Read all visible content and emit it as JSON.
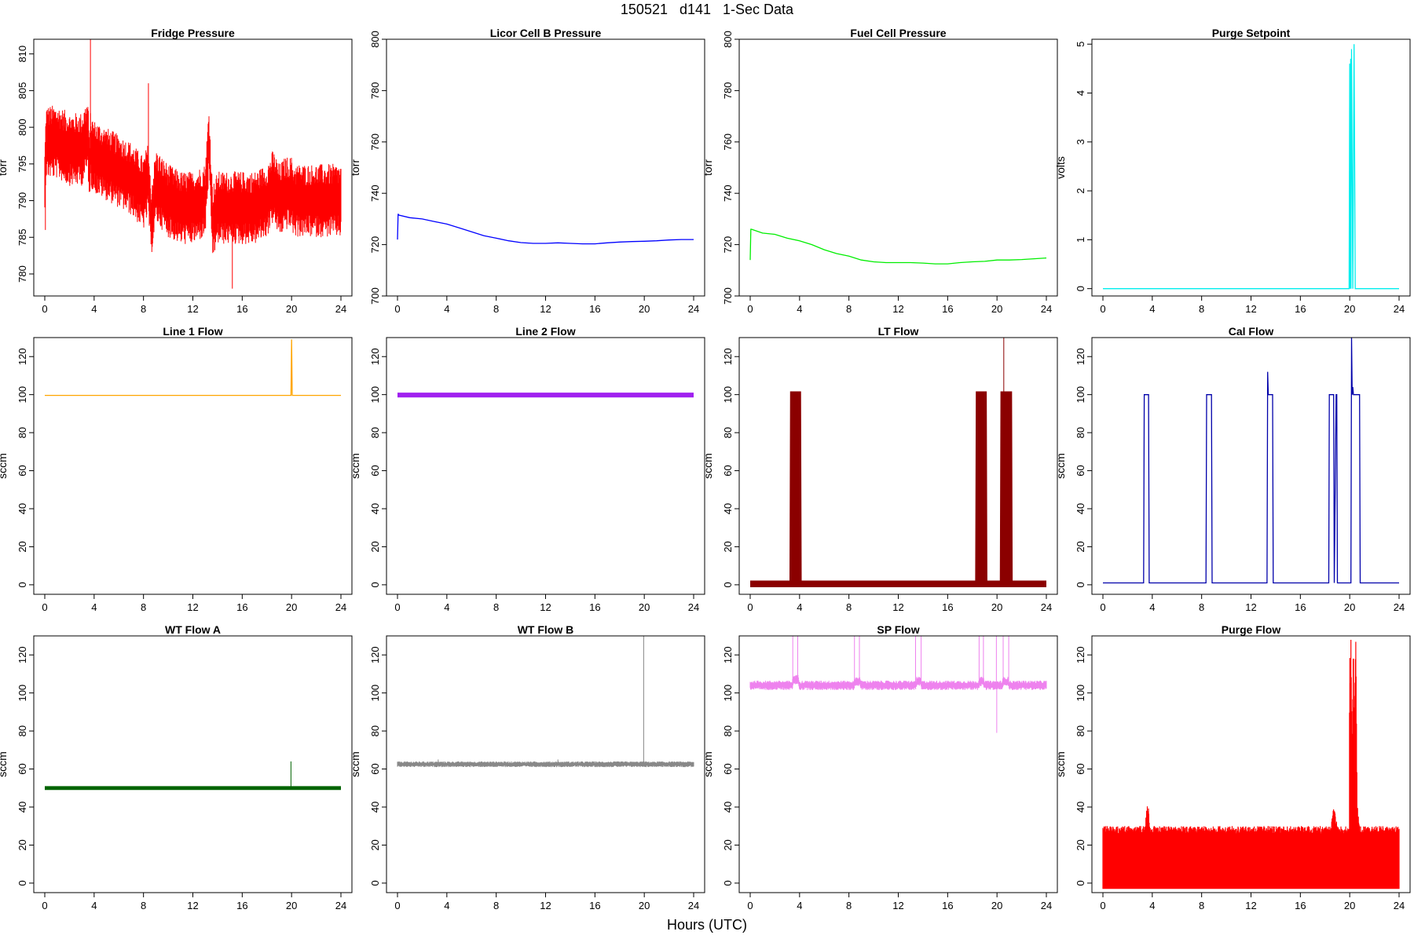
{
  "figure": {
    "title": "150521   d141   1-Sec Data",
    "xlabel": "Hours (UTC)"
  },
  "chart_data": [
    {
      "type": "line",
      "title": "Fridge Pressure",
      "ylabel": "torr",
      "color": "#ff0000",
      "render": "noisy",
      "xlim": [
        0,
        24
      ],
      "ylim": [
        777,
        812
      ],
      "xticks": [
        0,
        4,
        8,
        12,
        16,
        20,
        24
      ],
      "yticks": [
        780,
        785,
        790,
        795,
        800,
        805,
        810
      ],
      "x": [
        0,
        0.1,
        1,
        2,
        3,
        3.5,
        3.6,
        3.7,
        4,
        5,
        6,
        7,
        8,
        8.4,
        8.6,
        9,
        10,
        11,
        12,
        13,
        13.3,
        13.6,
        14,
        15,
        16,
        17,
        18,
        18.5,
        19,
        19.5,
        20,
        20.2,
        21,
        22,
        23,
        24
      ],
      "y": [
        792,
        798,
        798,
        797,
        797,
        799,
        794,
        797,
        796,
        795,
        794,
        793,
        791,
        793,
        787,
        792,
        790,
        789,
        789,
        790,
        798,
        787,
        789,
        789,
        789,
        789,
        790,
        792,
        790,
        791,
        791,
        790,
        790,
        790,
        790,
        790
      ],
      "noise": 5,
      "spikes": [
        {
          "x": 3.7,
          "y": 812
        },
        {
          "x": 8.4,
          "y": 806
        },
        {
          "x": 15.2,
          "y": 778
        },
        {
          "x": 0.05,
          "y": 786
        }
      ]
    },
    {
      "type": "line",
      "title": "Licor Cell B Pressure",
      "ylabel": "torr",
      "color": "#0000ff",
      "render": "line",
      "xlim": [
        0,
        24
      ],
      "ylim": [
        700,
        800
      ],
      "xticks": [
        0,
        4,
        8,
        12,
        16,
        20,
        24
      ],
      "yticks": [
        700,
        720,
        740,
        760,
        780,
        800
      ],
      "x": [
        0,
        0.05,
        0.1,
        1,
        2,
        3,
        4,
        5,
        6,
        7,
        8,
        9,
        10,
        11,
        12,
        13,
        14,
        15,
        16,
        17,
        18,
        19,
        20,
        21,
        22,
        23,
        24
      ],
      "y": [
        722,
        732,
        731.5,
        730.5,
        730,
        729,
        728,
        726.5,
        725,
        723.5,
        722.5,
        721.5,
        720.8,
        720.5,
        720.5,
        720.7,
        720.5,
        720.3,
        720.3,
        720.7,
        721,
        721.2,
        721.3,
        721.5,
        721.8,
        722,
        722
      ]
    },
    {
      "type": "line",
      "title": "Fuel Cell Pressure",
      "ylabel": "torr",
      "color": "#00ee00",
      "render": "line",
      "xlim": [
        0,
        24
      ],
      "ylim": [
        700,
        800
      ],
      "xticks": [
        0,
        4,
        8,
        12,
        16,
        20,
        24
      ],
      "yticks": [
        700,
        720,
        740,
        760,
        780,
        800
      ],
      "x": [
        0,
        0.05,
        0.1,
        1,
        2,
        3,
        4,
        5,
        6,
        7,
        8,
        9,
        10,
        11,
        12,
        13,
        14,
        15,
        16,
        17,
        18,
        19,
        20,
        21,
        22,
        23,
        24
      ],
      "y": [
        714,
        726,
        726,
        724.5,
        724,
        722.5,
        721.5,
        720,
        718,
        716.5,
        715.5,
        714,
        713.3,
        713,
        713,
        713,
        712.8,
        712.5,
        712.5,
        713,
        713.3,
        713.5,
        714,
        714,
        714.2,
        714.5,
        714.8
      ]
    },
    {
      "type": "line",
      "title": "Purge Setpoint",
      "ylabel": "volts",
      "color": "#00eeee",
      "render": "line",
      "xlim": [
        0,
        24
      ],
      "ylim": [
        -0.15,
        5.1
      ],
      "xticks": [
        0,
        4,
        8,
        12,
        16,
        20,
        24
      ],
      "yticks": [
        0,
        1,
        2,
        3,
        4,
        5
      ],
      "x": [
        0,
        19.95,
        20.0,
        20.02,
        20.08,
        20.1,
        20.15,
        20.2,
        20.25,
        20.3,
        20.35,
        20.4,
        20.45,
        20.5,
        20.55,
        24
      ],
      "y": [
        0,
        0,
        4.6,
        0,
        4.7,
        0,
        4.9,
        2.5,
        0,
        2.3,
        5.0,
        2.5,
        0,
        0,
        0,
        0
      ]
    },
    {
      "type": "line",
      "title": "Line 1 Flow",
      "ylabel": "sccm",
      "color": "#ffa500",
      "render": "line",
      "xlim": [
        0,
        24
      ],
      "ylim": [
        -5,
        130
      ],
      "xticks": [
        0,
        4,
        8,
        12,
        16,
        20,
        24
      ],
      "yticks": [
        0,
        20,
        40,
        60,
        80,
        100,
        120
      ],
      "x": [
        0,
        19.95,
        20.0,
        20.05,
        24
      ],
      "y": [
        99.6,
        99.6,
        129,
        99.6,
        99.6
      ]
    },
    {
      "type": "line",
      "title": "Line 2 Flow",
      "ylabel": "sccm",
      "color": "#a020f0",
      "render": "band",
      "xlim": [
        0,
        24
      ],
      "ylim": [
        -5,
        130
      ],
      "xticks": [
        0,
        4,
        8,
        12,
        16,
        20,
        24
      ],
      "yticks": [
        0,
        20,
        40,
        60,
        80,
        100,
        120
      ],
      "x": [
        0,
        24
      ],
      "y": [
        99.8,
        99.8
      ],
      "band": 2.5
    },
    {
      "type": "line",
      "title": "LT Flow",
      "ylabel": "sccm",
      "color": "#8b0000",
      "render": "band",
      "xlim": [
        0,
        24
      ],
      "ylim": [
        -5,
        130
      ],
      "xticks": [
        0,
        4,
        8,
        12,
        16,
        20,
        24
      ],
      "yticks": [
        0,
        20,
        40,
        60,
        80,
        100,
        120
      ],
      "x": [
        0,
        3.45,
        3.5,
        3.85,
        3.9,
        18.5,
        18.55,
        18.9,
        18.95,
        20.5,
        20.55,
        20.95,
        21.0,
        24
      ],
      "y": [
        0.5,
        0.5,
        100,
        100,
        0.5,
        0.5,
        100,
        100,
        0.5,
        0.5,
        100,
        100,
        0.5,
        0.5
      ],
      "band": 3.5,
      "spikes": [
        {
          "x": 20.55,
          "y": 130
        }
      ]
    },
    {
      "type": "line",
      "title": "Cal Flow",
      "ylabel": "sccm",
      "color": "#0000aa",
      "render": "line",
      "xlim": [
        0,
        24
      ],
      "ylim": [
        -5,
        130
      ],
      "xticks": [
        0,
        4,
        8,
        12,
        16,
        20,
        24
      ],
      "yticks": [
        0,
        20,
        40,
        60,
        80,
        100,
        120
      ],
      "x": [
        0,
        3.3,
        3.35,
        3.7,
        3.75,
        8.35,
        8.4,
        8.8,
        8.85,
        13.3,
        13.35,
        13.4,
        13.75,
        13.8,
        18.3,
        18.35,
        18.7,
        18.75,
        18.9,
        18.95,
        19.0,
        19.05,
        20.1,
        20.15,
        20.2,
        20.25,
        20.3,
        20.8,
        20.85,
        24
      ],
      "y": [
        1,
        1,
        100,
        100,
        1,
        1,
        100,
        100,
        1,
        1,
        112,
        100,
        100,
        1,
        1,
        100,
        100,
        1,
        100,
        100,
        1,
        1,
        1,
        130,
        100,
        104,
        100,
        100,
        1,
        1
      ]
    },
    {
      "type": "line",
      "title": "WT Flow A",
      "ylabel": "sccm",
      "color": "#006400",
      "render": "band",
      "xlim": [
        0,
        24
      ],
      "ylim": [
        -5,
        130
      ],
      "xticks": [
        0,
        4,
        8,
        12,
        16,
        20,
        24
      ],
      "yticks": [
        0,
        20,
        40,
        60,
        80,
        100,
        120
      ],
      "x": [
        0,
        24
      ],
      "y": [
        50,
        50
      ],
      "band": 2,
      "spikes": [
        {
          "x": 19.95,
          "y": 64
        }
      ]
    },
    {
      "type": "line",
      "title": "WT Flow B",
      "ylabel": "sccm",
      "color": "#888888",
      "render": "noisy",
      "xlim": [
        0,
        24
      ],
      "ylim": [
        -5,
        130
      ],
      "xticks": [
        0,
        4,
        8,
        12,
        16,
        20,
        24
      ],
      "yticks": [
        0,
        20,
        40,
        60,
        80,
        100,
        120
      ],
      "x": [
        0,
        24
      ],
      "y": [
        62.5,
        62.5
      ],
      "noise": 1.5,
      "spikes": [
        {
          "x": 19.95,
          "y": 130
        },
        {
          "x": 20.05,
          "y": 64
        },
        {
          "x": 3.3,
          "y": 65
        },
        {
          "x": 13.0,
          "y": 65
        }
      ]
    },
    {
      "type": "line",
      "title": "SP Flow",
      "ylabel": "sccm",
      "color": "#ee82ee",
      "render": "noisy",
      "xlim": [
        0,
        24
      ],
      "ylim": [
        -5,
        130
      ],
      "xticks": [
        0,
        4,
        8,
        12,
        16,
        20,
        24
      ],
      "yticks": [
        0,
        20,
        40,
        60,
        80,
        100,
        120
      ],
      "x": [
        0,
        3.4,
        3.5,
        3.9,
        4.0,
        8.4,
        8.5,
        8.9,
        9.0,
        13.4,
        13.5,
        13.8,
        13.9,
        18.5,
        18.6,
        18.9,
        19.0,
        20.4,
        20.5,
        20.9,
        21.0,
        24
      ],
      "y": [
        104,
        104,
        107,
        107,
        104,
        104,
        106,
        106,
        104,
        104,
        106,
        106,
        104,
        104,
        106,
        106,
        104,
        104,
        106,
        106,
        104,
        104
      ],
      "noise": 2.5,
      "spikes": [
        {
          "x": 3.45,
          "y": 130
        },
        {
          "x": 3.85,
          "y": 130
        },
        {
          "x": 8.45,
          "y": 130
        },
        {
          "x": 8.85,
          "y": 130
        },
        {
          "x": 13.4,
          "y": 130
        },
        {
          "x": 13.85,
          "y": 130
        },
        {
          "x": 18.55,
          "y": 130
        },
        {
          "x": 18.9,
          "y": 130
        },
        {
          "x": 19.95,
          "y": 130
        },
        {
          "x": 19.98,
          "y": 79
        },
        {
          "x": 20.5,
          "y": 130
        },
        {
          "x": 20.95,
          "y": 130
        }
      ]
    },
    {
      "type": "line",
      "title": "Purge Flow",
      "ylabel": "sccm",
      "color": "#ff0000",
      "render": "fill",
      "xlim": [
        0,
        24
      ],
      "ylim": [
        -5,
        130
      ],
      "xticks": [
        0,
        4,
        8,
        12,
        16,
        20,
        24
      ],
      "yticks": [
        0,
        20,
        40,
        60,
        80,
        100,
        120
      ],
      "x": [
        0,
        3.4,
        3.6,
        3.7,
        3.8,
        18.5,
        18.7,
        18.8,
        19.0,
        19.95,
        20.0,
        20.05,
        20.1,
        20.2,
        20.3,
        20.35,
        20.5,
        20.6,
        20.8,
        24
      ],
      "y": [
        30,
        30,
        42,
        40,
        30,
        30,
        42,
        38,
        30,
        30,
        130,
        90,
        130,
        70,
        130,
        85,
        130,
        42,
        30,
        30
      ],
      "baseline": -3,
      "noise": 4
    }
  ]
}
